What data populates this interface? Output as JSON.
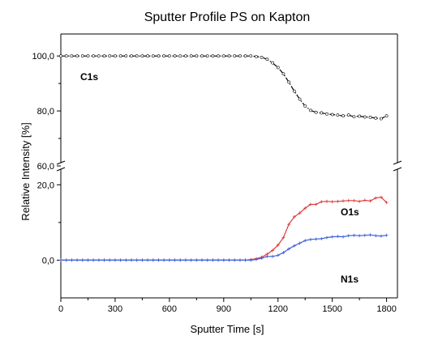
{
  "chart_data": {
    "type": "line",
    "title": "Sputter Profile PS on Kapton",
    "xlabel": "Sputter Time [s]",
    "ylabel": "Relative Intensity [%]",
    "xlim": [
      0,
      1860
    ],
    "x_ticks": [
      0,
      300,
      600,
      900,
      1200,
      1500,
      1800
    ],
    "x_tick_labels": [
      "0",
      "300",
      "600",
      "900",
      "1200",
      "1500",
      "1800"
    ],
    "y_axis_break": {
      "lower_range": [
        -10,
        25
      ],
      "upper_range": [
        60,
        108
      ]
    },
    "y_ticks": [
      0,
      20,
      60,
      80,
      100
    ],
    "y_tick_labels": [
      "0,0",
      "20,0",
      "60,0",
      "80,0",
      "100,0"
    ],
    "grid": false,
    "legend": "none (series labelled directly on the plot)",
    "series": [
      {
        "name": "C1s",
        "color": "#000000",
        "style": "dash-dot with open circle markers",
        "x": [
          0,
          300,
          600,
          900,
          1000,
          1050,
          1080,
          1110,
          1140,
          1170,
          1200,
          1230,
          1260,
          1290,
          1320,
          1350,
          1380,
          1410,
          1440,
          1470,
          1500,
          1530,
          1560,
          1590,
          1620,
          1650,
          1680,
          1710,
          1740,
          1770,
          1800
        ],
        "values": [
          100,
          100,
          100,
          100,
          100,
          100,
          99.8,
          99.5,
          98.8,
          97.5,
          95.8,
          93.5,
          90.5,
          87.2,
          84.3,
          81.8,
          80.2,
          79.5,
          79.3,
          78.9,
          78.7,
          78.5,
          78.2,
          78.5,
          77.9,
          78.1,
          77.8,
          77.7,
          77.4,
          77.2,
          78.2
        ]
      },
      {
        "name": "O1s",
        "color": "#e03a3a",
        "style": "solid with cross markers",
        "x": [
          0,
          300,
          600,
          900,
          1030,
          1080,
          1110,
          1140,
          1170,
          1200,
          1230,
          1260,
          1290,
          1320,
          1350,
          1380,
          1410,
          1440,
          1470,
          1500,
          1530,
          1560,
          1590,
          1620,
          1650,
          1680,
          1710,
          1740,
          1770,
          1800
        ],
        "values": [
          0,
          0,
          0,
          0,
          0,
          0.4,
          0.8,
          1.6,
          2.6,
          4.0,
          6.0,
          9.5,
          11.5,
          12.5,
          13.8,
          14.8,
          14.8,
          15.5,
          15.6,
          15.5,
          15.6,
          15.7,
          15.8,
          15.8,
          15.6,
          15.9,
          15.7,
          16.5,
          16.7,
          15.3
        ]
      },
      {
        "name": "N1s",
        "color": "#3a5fd9",
        "style": "solid with cross markers",
        "x": [
          0,
          300,
          600,
          900,
          1050,
          1080,
          1110,
          1140,
          1170,
          1200,
          1230,
          1260,
          1290,
          1320,
          1350,
          1380,
          1410,
          1440,
          1470,
          1500,
          1530,
          1560,
          1590,
          1620,
          1650,
          1680,
          1710,
          1740,
          1770,
          1800
        ],
        "values": [
          0,
          0,
          0,
          0,
          0,
          0.2,
          0.5,
          1.0,
          1.0,
          1.3,
          2.0,
          3.0,
          3.8,
          4.5,
          5.2,
          5.5,
          5.6,
          5.7,
          6.0,
          6.2,
          6.3,
          6.2,
          6.5,
          6.6,
          6.5,
          6.6,
          6.7,
          6.5,
          6.4,
          6.6
        ]
      }
    ]
  }
}
